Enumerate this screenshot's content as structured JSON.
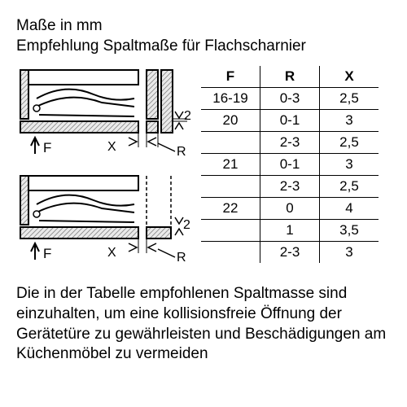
{
  "heading_line1": "Maße in mm",
  "heading_line2": "Empfehlung Spaltmaße für Flachscharnier",
  "footer_text": "Die in der Tabelle empfohlenen Spaltmasse sind einzuhalten, um eine kollisionsfreie Öffnung der Gerätetüre zu gewährleisten und Beschädigungen am Küchenmöbel zu vermeiden",
  "diagram": {
    "label_gap": "2",
    "label_F": "F",
    "label_X": "X",
    "label_R": "R",
    "stroke": "#000",
    "hatch_bg": "#eaeaea",
    "fill_light": "#f5f5f5",
    "fill_white": "#ffffff"
  },
  "table": {
    "headers": [
      "F",
      "R",
      "X"
    ],
    "rows": [
      {
        "F": "16-19",
        "R": "0-3",
        "X": "2,5"
      },
      {
        "F": "20",
        "R": "0-1",
        "X": "3"
      },
      {
        "F": "",
        "R": "2-3",
        "X": "2,5"
      },
      {
        "F": "21",
        "R": "0-1",
        "X": "3"
      },
      {
        "F": "",
        "R": "2-3",
        "X": "2,5"
      },
      {
        "F": "22",
        "R": "0",
        "X": "4"
      },
      {
        "F": "",
        "R": "1",
        "X": "3,5"
      },
      {
        "F": "",
        "R": "2-3",
        "X": "3"
      }
    ],
    "font_size": 17,
    "border_color": "#000000"
  }
}
